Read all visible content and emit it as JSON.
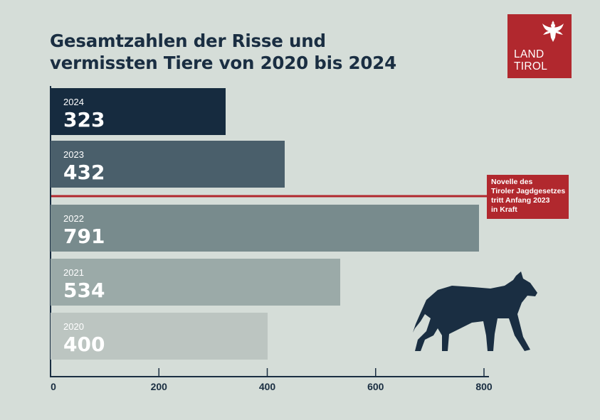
{
  "header": {
    "title_line1": "Gesamtzahlen der Risse und",
    "title_line2": "vermissten Tiere von 2020 bis 2024"
  },
  "logo": {
    "line1": "LAND",
    "line2": "TIROL",
    "icon": "eagle-icon"
  },
  "annotation": {
    "line1": "Novelle des",
    "line2": "Tiroler Jagdgesetzes",
    "line3": "tritt Anfang 2023",
    "line4": "in Kraft"
  },
  "decoration": {
    "icon": "wolf-icon"
  },
  "colors": {
    "background": "#d5ddd8",
    "accent": "#b1282e",
    "title": "#1a2e42",
    "bar_2024": "#162b3f",
    "bar_2023": "#4a5f6b",
    "bar_2022": "#788b8d",
    "bar_2021": "#9baaa8",
    "bar_2020": "#bcc5c1",
    "wolf": "#1a2e42"
  },
  "chart_data": {
    "type": "bar",
    "orientation": "horizontal",
    "title": "Gesamtzahlen der Risse und vermissten Tiere von 2020 bis 2024",
    "categories": [
      "2024",
      "2023",
      "2022",
      "2021",
      "2020"
    ],
    "values": [
      323,
      432,
      791,
      534,
      400
    ],
    "xlim": [
      0,
      800
    ],
    "x_ticks": [
      0,
      200,
      400,
      600,
      800
    ],
    "grid": false,
    "reference_line": {
      "between": [
        "2023",
        "2022"
      ],
      "label": "Novelle des Tiroler Jagdgesetzes tritt Anfang 2023 in Kraft"
    }
  }
}
